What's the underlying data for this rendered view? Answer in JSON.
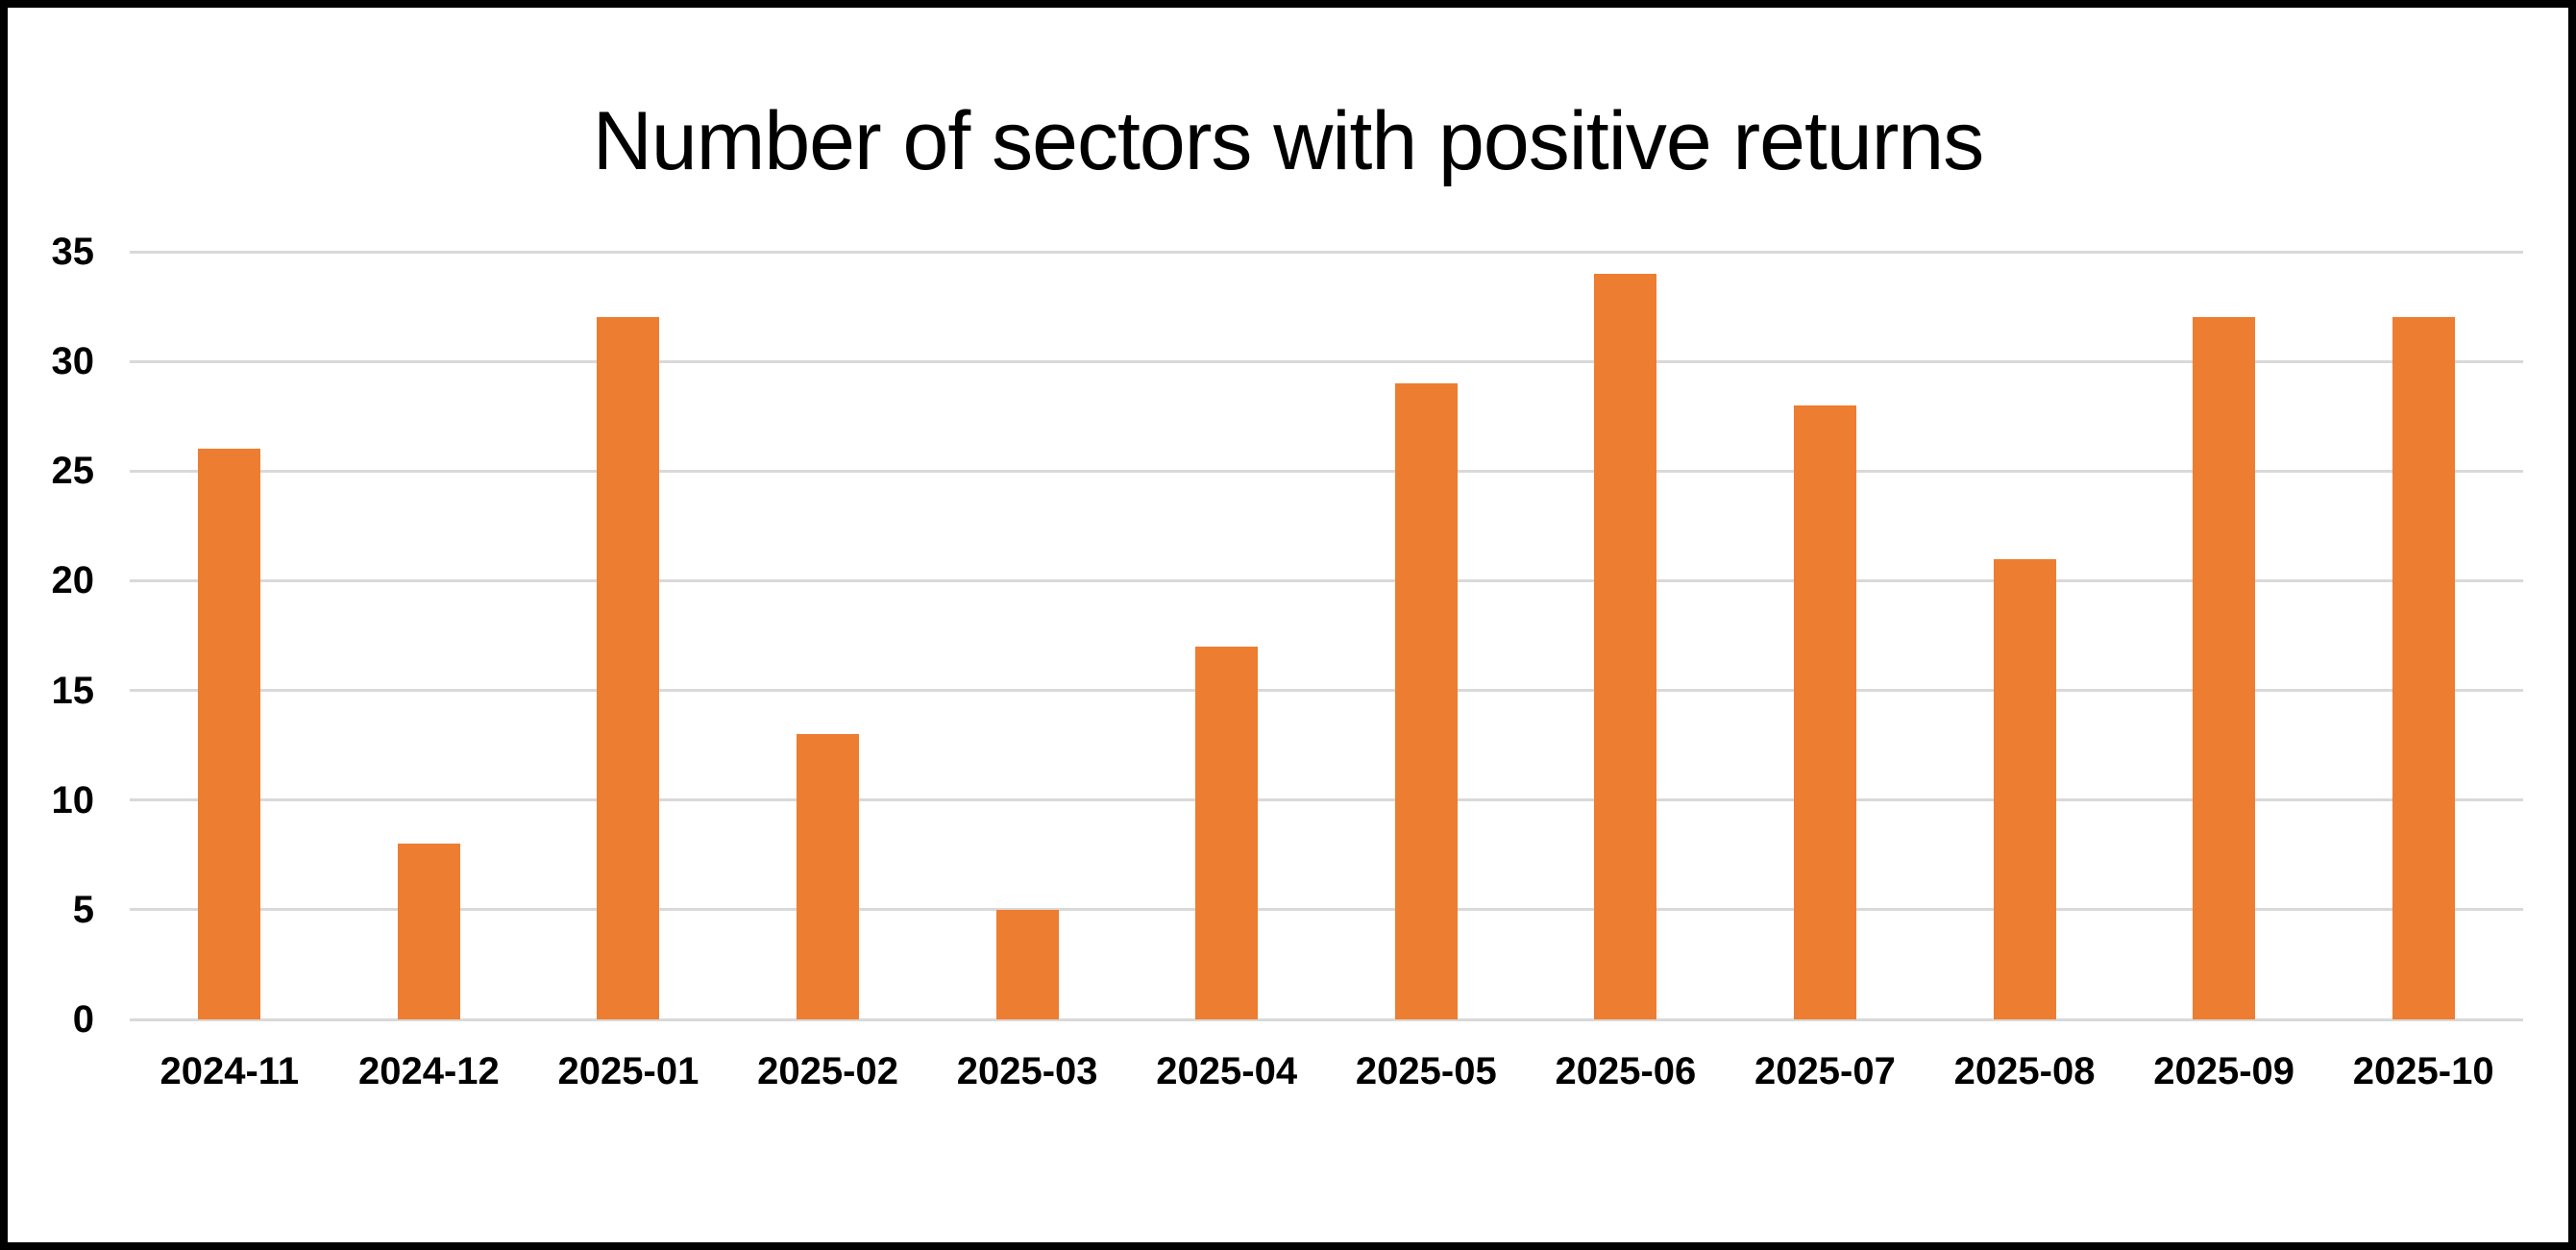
{
  "window": {
    "background_color": "#FFFFFF",
    "frame_border_color": "#000000"
  },
  "chart_data": {
    "type": "bar",
    "title": "Number of sectors with positive returns",
    "categories": [
      "2024-11",
      "2024-12",
      "2025-01",
      "2025-02",
      "2025-03",
      "2025-04",
      "2025-05",
      "2025-06",
      "2025-07",
      "2025-08",
      "2025-09",
      "2025-10"
    ],
    "values": [
      26,
      8,
      32,
      13,
      5,
      17,
      29,
      34,
      28,
      21,
      32,
      32
    ],
    "xlabel": "",
    "ylabel": "",
    "ylim": [
      0,
      35
    ],
    "yticks": [
      0,
      5,
      10,
      15,
      20,
      25,
      30,
      35
    ],
    "grid": true,
    "legend": false,
    "bar_color": "#ED7D31",
    "gridline_color": "#D9D9D9",
    "text_color": "#000000"
  }
}
